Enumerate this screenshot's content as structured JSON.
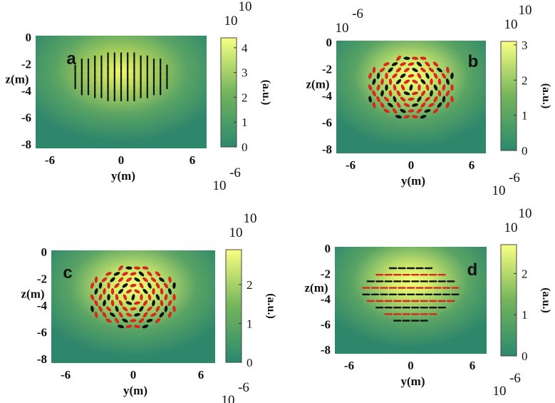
{
  "colors": {
    "green": "#2f8a6e",
    "yellow": "#f4ff78",
    "red": "#d8271b",
    "black": "#111111"
  },
  "panels": [
    {
      "id": "a",
      "label": "a",
      "field_peak": 4.4,
      "pattern": "vertical",
      "yticks": [
        "0",
        "-2",
        "-4",
        "-6",
        "-8"
      ],
      "xticks": [
        "-6",
        "0",
        "6"
      ],
      "ylabel": "z(m)",
      "xlabel": "y(m)",
      "cbar": {
        "ticks": [
          "4",
          "3",
          "2",
          "1",
          "0"
        ],
        "max": 4.4,
        "unit": "(a.u.)",
        "top_exp": "10",
        "top_mant": "10"
      },
      "x_exponent": "10",
      "x_exponent_sup": "-6",
      "top_exponent": "",
      "top_exponent_sup": ""
    },
    {
      "id": "b",
      "label": "b",
      "field_peak": 3.1,
      "pattern": "mixed",
      "yticks": [
        "0",
        "-2",
        "-4",
        "-6",
        "-8"
      ],
      "xticks": [
        "-6",
        "0",
        "6"
      ],
      "ylabel": "z(m)",
      "xlabel": "y(m)",
      "cbar": {
        "ticks": [
          "3",
          "2",
          "1",
          "0"
        ],
        "max": 3.1,
        "unit": "(a.u.)",
        "top_exp": "10",
        "top_mant": "10"
      },
      "x_exponent": "10",
      "x_exponent_sup": "-6",
      "top_exponent": "10",
      "top_exponent_sup": "-6"
    },
    {
      "id": "c",
      "label": "c",
      "field_peak": 2.9,
      "pattern": "mixed",
      "yticks": [
        "0",
        "-2",
        "-4",
        "-6",
        "-8"
      ],
      "xticks": [
        "-6",
        "0",
        "6"
      ],
      "ylabel": "z(m)",
      "xlabel": "y(m)",
      "cbar": {
        "ticks": [
          "2",
          "1",
          "0"
        ],
        "max": 2.9,
        "unit": "(a.u.)",
        "top_exp": "10",
        "top_mant": "10"
      },
      "x_exponent": "10",
      "x_exponent_sup": "-6",
      "top_exponent": "",
      "top_exponent_sup": ""
    },
    {
      "id": "d",
      "label": "d",
      "field_peak": 2.7,
      "pattern": "horizontal",
      "yticks": [
        "0",
        "-2",
        "-4",
        "-6",
        "-8"
      ],
      "xticks": [
        "-6",
        "0",
        "6"
      ],
      "ylabel": "z(m)",
      "xlabel": "y(m)",
      "cbar": {
        "ticks": [
          "2",
          "1",
          "0"
        ],
        "max": 2.7,
        "unit": "(a.u.)",
        "top_exp": "10",
        "top_mant": "10"
      },
      "x_exponent": "10",
      "x_exponent_sup": "-6",
      "top_exponent": "",
      "top_exponent_sup": ""
    }
  ]
}
